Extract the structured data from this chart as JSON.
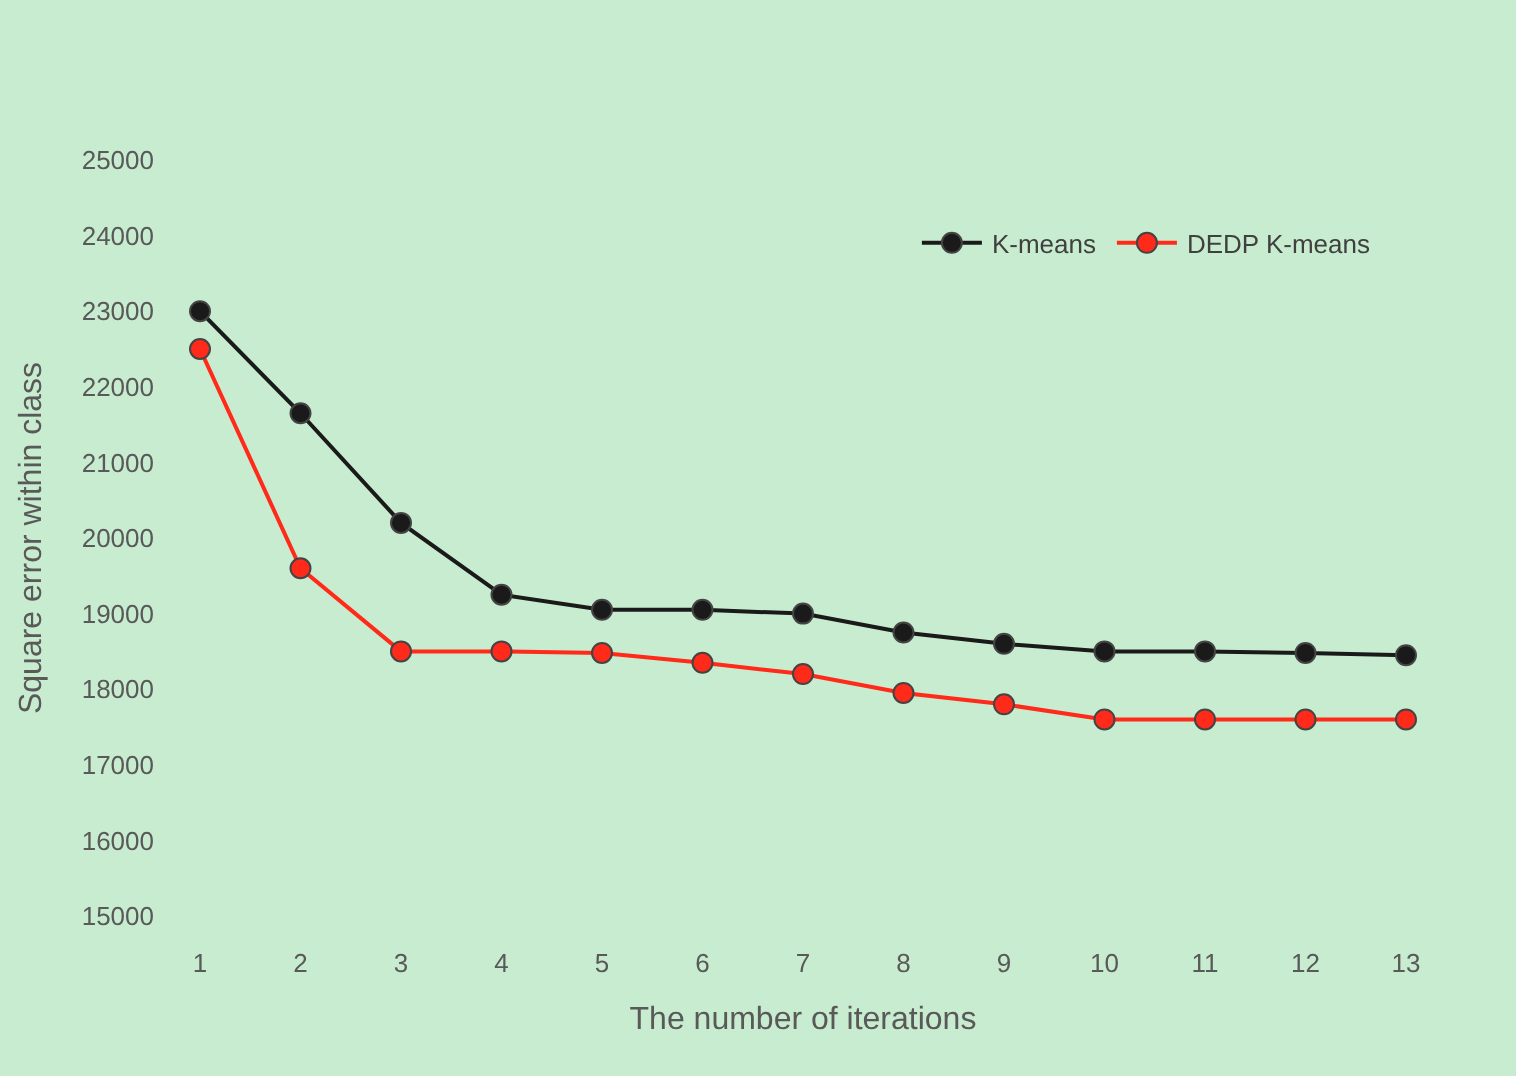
{
  "chart_data": {
    "type": "line",
    "xlabel": "The number of iterations",
    "ylabel": "Square error within class",
    "x": [
      1,
      2,
      3,
      4,
      5,
      6,
      7,
      8,
      9,
      10,
      11,
      12,
      13
    ],
    "series": [
      {
        "name": "K-means",
        "color": "#1a1a1a",
        "values": [
          23000,
          21650,
          20200,
          19250,
          19050,
          19050,
          19000,
          18750,
          18600,
          18500,
          18500,
          18480,
          18450
        ]
      },
      {
        "name": "DEDP K-means",
        "color": "#ff2a1a",
        "values": [
          22500,
          19600,
          18500,
          18500,
          18480,
          18350,
          18200,
          17950,
          17800,
          17600,
          17600,
          17600,
          17600
        ]
      }
    ],
    "xlim": [
      1,
      13
    ],
    "xticks": [
      1,
      2,
      3,
      4,
      5,
      6,
      7,
      8,
      9,
      10,
      11,
      12,
      13
    ],
    "ylim": [
      15000,
      25000
    ],
    "yticks": [
      15000,
      16000,
      17000,
      18000,
      19000,
      20000,
      21000,
      22000,
      23000,
      24000,
      25000
    ],
    "grid": false,
    "legend": "top right",
    "marker": "circle",
    "line_style": "solid"
  }
}
